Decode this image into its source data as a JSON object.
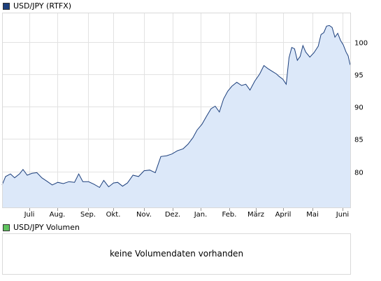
{
  "legend": {
    "price_label": "USD/JPY (RTFX)",
    "volume_label": "USD/JPY Volumen"
  },
  "volume": {
    "message": "keine Volumendaten vorhanden"
  },
  "colors": {
    "line": "#1c3f7c",
    "fill": "#dce8f9",
    "grid": "#e2e2e2",
    "frame": "#d9d9d9",
    "volume_legend": "#5fc35f"
  },
  "chart_data": {
    "type": "area",
    "title": "USD/JPY (RTFX)",
    "xlabel": "",
    "ylabel": "",
    "x_ticks": [
      "Juli",
      "Aug.",
      "Sep.",
      "Okt.",
      "Nov.",
      "Dez.",
      "Jan.",
      "Feb.",
      "März",
      "April",
      "Mai",
      "Juni"
    ],
    "y_ticks": [
      80,
      85,
      90,
      95,
      100
    ],
    "ylim": [
      74.3,
      104.6
    ],
    "grid": true,
    "y_axis_side": "right",
    "series": [
      {
        "name": "USD/JPY (RTFX)",
        "x": [
          "Juni",
          "Juli",
          "Juli",
          "Aug.",
          "Aug.",
          "Sep.",
          "Sep.",
          "Okt.",
          "Okt.",
          "Nov.",
          "Nov.",
          "Dez.",
          "Dez.",
          "Jan.",
          "Jan.",
          "Feb.",
          "Feb.",
          "März",
          "März",
          "April",
          "April",
          "Mai",
          "Mai",
          "Juni",
          "Juni"
        ],
        "points": [
          [
            0,
            77.9
          ],
          [
            5,
            79.2
          ],
          [
            12,
            79.6
          ],
          [
            18,
            79.0
          ],
          [
            25,
            79.6
          ],
          [
            30,
            80.3
          ],
          [
            36,
            79.4
          ],
          [
            43,
            79.7
          ],
          [
            50,
            79.8
          ],
          [
            57,
            79.0
          ],
          [
            64,
            78.5
          ],
          [
            72,
            77.9
          ],
          [
            80,
            78.3
          ],
          [
            88,
            78.1
          ],
          [
            96,
            78.4
          ],
          [
            104,
            78.3
          ],
          [
            110,
            79.6
          ],
          [
            116,
            78.4
          ],
          [
            124,
            78.4
          ],
          [
            132,
            78.0
          ],
          [
            140,
            77.5
          ],
          [
            146,
            78.6
          ],
          [
            153,
            77.6
          ],
          [
            160,
            78.2
          ],
          [
            166,
            78.3
          ],
          [
            173,
            77.7
          ],
          [
            180,
            78.2
          ],
          [
            188,
            79.4
          ],
          [
            196,
            79.2
          ],
          [
            204,
            80.1
          ],
          [
            212,
            80.2
          ],
          [
            220,
            79.8
          ],
          [
            228,
            82.3
          ],
          [
            236,
            82.4
          ],
          [
            244,
            82.7
          ],
          [
            252,
            83.2
          ],
          [
            260,
            83.5
          ],
          [
            267,
            84.2
          ],
          [
            274,
            85.2
          ],
          [
            280,
            86.4
          ],
          [
            287,
            87.3
          ],
          [
            294,
            88.6
          ],
          [
            300,
            89.7
          ],
          [
            306,
            90.1
          ],
          [
            312,
            89.2
          ],
          [
            318,
            91.2
          ],
          [
            324,
            92.4
          ],
          [
            330,
            93.2
          ],
          [
            337,
            93.8
          ],
          [
            344,
            93.3
          ],
          [
            350,
            93.5
          ],
          [
            356,
            92.6
          ],
          [
            363,
            94.0
          ],
          [
            370,
            95.1
          ],
          [
            376,
            96.4
          ],
          [
            382,
            95.9
          ],
          [
            388,
            95.5
          ],
          [
            394,
            95.1
          ],
          [
            398,
            94.7
          ],
          [
            403,
            94.3
          ],
          [
            408,
            93.5
          ],
          [
            412,
            97.6
          ],
          [
            416,
            99.2
          ],
          [
            420,
            99.0
          ],
          [
            424,
            97.2
          ],
          [
            428,
            97.8
          ],
          [
            432,
            99.5
          ],
          [
            436,
            98.5
          ],
          [
            442,
            97.7
          ],
          [
            448,
            98.4
          ],
          [
            454,
            99.4
          ],
          [
            458,
            101.2
          ],
          [
            462,
            101.5
          ],
          [
            466,
            102.5
          ],
          [
            470,
            102.6
          ],
          [
            474,
            102.3
          ],
          [
            478,
            100.8
          ],
          [
            482,
            101.4
          ],
          [
            486,
            100.3
          ],
          [
            490,
            99.6
          ],
          [
            494,
            98.5
          ],
          [
            497,
            97.9
          ],
          [
            499,
            96.9
          ],
          [
            500,
            96.5
          ]
        ]
      }
    ]
  }
}
